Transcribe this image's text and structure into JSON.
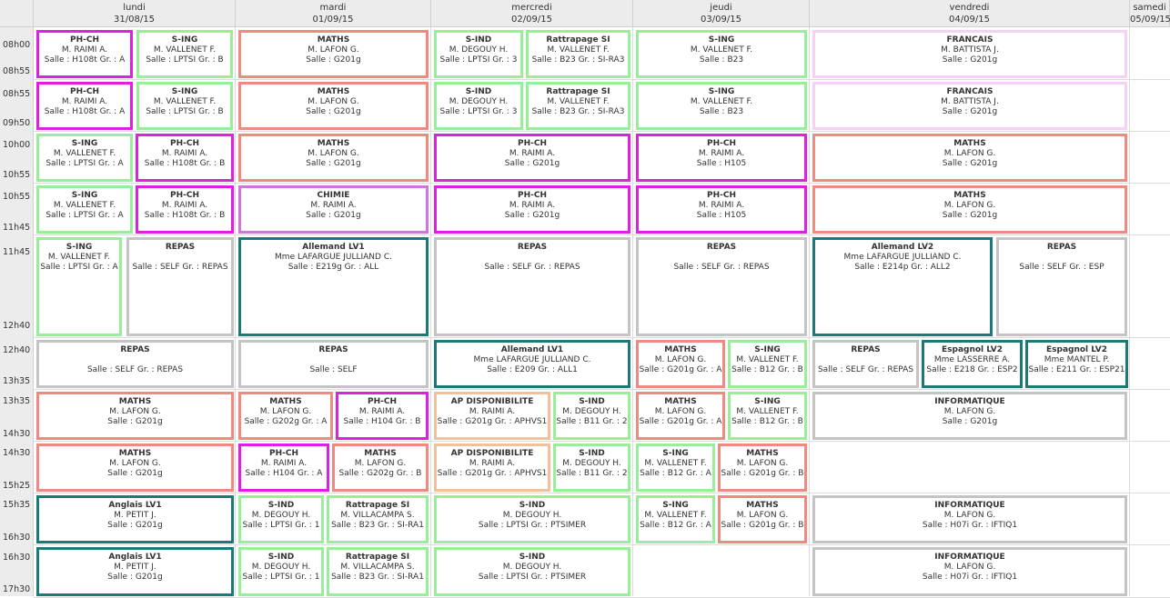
{
  "days": [
    {
      "name": "lundi",
      "date": "31/08/15"
    },
    {
      "name": "mardi",
      "date": "01/09/15"
    },
    {
      "name": "mercredi",
      "date": "02/09/15"
    },
    {
      "name": "jeudi",
      "date": "03/09/15"
    },
    {
      "name": "vendredi",
      "date": "04/09/15"
    },
    {
      "name": "samedi",
      "date": "05/09/15"
    }
  ],
  "time_labels": [
    "08h00",
    "08h55",
    "08h55",
    "09h50",
    "10h00",
    "10h55",
    "10h55",
    "11h45",
    "11h45",
    "12h40",
    "12h40",
    "13h35",
    "13h35",
    "14h30",
    "14h30",
    "15h25",
    "15h35",
    "16h30",
    "16h30",
    "17h30"
  ],
  "colors": {
    "magenta": "#e020e0",
    "green": "#99ee99",
    "salmon": "#ef8a80",
    "teal": "#1a7a75",
    "gray": "#c4c4c4",
    "pink": "#f5d2f5",
    "violet": "#cc77dd",
    "peach": "#f2c09a"
  },
  "cells": [
    {
      "subject": "PH-CH",
      "teacher": "M. RAIMI A.",
      "room": "Salle : H108t Gr. : A",
      "color": "magenta"
    },
    {
      "subject": "S-ING",
      "teacher": "M. VALLENET F.",
      "room": "Salle : LPTSI Gr. : B",
      "color": "green"
    },
    {
      "subject": "MATHS",
      "teacher": "M. LAFON G.",
      "room": "Salle : G201g",
      "color": "salmon"
    },
    {
      "subject": "S-IND",
      "teacher": "M. DEGOUY H.",
      "room": "Salle : LPTSI Gr. : 3",
      "color": "green"
    },
    {
      "subject": "Rattrapage SI",
      "teacher": "M. VALLENET F.",
      "room": "Salle : B23 Gr. : SI-RA3",
      "color": "green"
    },
    {
      "subject": "S-ING",
      "teacher": "M. VALLENET F.",
      "room": "Salle : B23",
      "color": "green"
    },
    {
      "subject": "FRANCAIS",
      "teacher": "M. BATTISTA J.",
      "room": "Salle : G201g",
      "color": "pink"
    },
    {
      "subject": "PH-CH",
      "teacher": "M. RAIMI A.",
      "room": "Salle : H108t Gr. : A",
      "color": "magenta"
    },
    {
      "subject": "S-ING",
      "teacher": "M. VALLENET F.",
      "room": "Salle : LPTSI Gr. : B",
      "color": "green"
    },
    {
      "subject": "MATHS",
      "teacher": "M. LAFON G.",
      "room": "Salle : G201g",
      "color": "salmon"
    },
    {
      "subject": "S-IND",
      "teacher": "M. DEGOUY H.",
      "room": "Salle : LPTSI Gr. : 3",
      "color": "green"
    },
    {
      "subject": "Rattrapage SI",
      "teacher": "M. VALLENET F.",
      "room": "Salle : B23 Gr. : SI-RA3",
      "color": "green"
    },
    {
      "subject": "S-ING",
      "teacher": "M. VALLENET F.",
      "room": "Salle : B23",
      "color": "green"
    },
    {
      "subject": "FRANCAIS",
      "teacher": "M. BATTISTA J.",
      "room": "Salle : G201g",
      "color": "pink"
    },
    {
      "subject": "S-ING",
      "teacher": "M. VALLENET F.",
      "room": "Salle : LPTSI Gr. : A",
      "color": "green"
    },
    {
      "subject": "PH-CH",
      "teacher": "M. RAIMI A.",
      "room": "Salle : H108t Gr. : B",
      "color": "magenta"
    },
    {
      "subject": "MATHS",
      "teacher": "M. LAFON G.",
      "room": "Salle : G201g",
      "color": "salmon"
    },
    {
      "subject": "PH-CH",
      "teacher": "M. RAIMI A.",
      "room": "Salle : G201g",
      "color": "magenta"
    },
    {
      "subject": "PH-CH",
      "teacher": "M. RAIMI A.",
      "room": "Salle : H105",
      "color": "magenta"
    },
    {
      "subject": "MATHS",
      "teacher": "M. LAFON G.",
      "room": "Salle : G201g",
      "color": "salmon"
    },
    {
      "subject": "S-ING",
      "teacher": "M. VALLENET F.",
      "room": "Salle : LPTSI Gr. : A",
      "color": "green"
    },
    {
      "subject": "PH-CH",
      "teacher": "M. RAIMI A.",
      "room": "Salle : H108t Gr. : B",
      "color": "magenta"
    },
    {
      "subject": "CHIMIE",
      "teacher": "M. RAIMI A.",
      "room": "Salle : G201g",
      "color": "violet"
    },
    {
      "subject": "PH-CH",
      "teacher": "M. RAIMI A.",
      "room": "Salle : G201g",
      "color": "magenta"
    },
    {
      "subject": "PH-CH",
      "teacher": "M. RAIMI A.",
      "room": "Salle : H105",
      "color": "magenta"
    },
    {
      "subject": "MATHS",
      "teacher": "M. LAFON G.",
      "room": "Salle : G201g",
      "color": "salmon"
    },
    {
      "subject": "S-ING",
      "teacher": "M. VALLENET F.",
      "room": "Salle : LPTSI Gr. : A",
      "color": "green"
    },
    {
      "subject": "REPAS",
      "teacher": "",
      "room": "Salle : SELF Gr. : REPAS",
      "color": "gray"
    },
    {
      "subject": "Allemand LV1",
      "teacher": "Mme LAFARGUE JULLIAND C.",
      "room": "Salle : E219g Gr. : ALL",
      "color": "teal"
    },
    {
      "subject": "REPAS",
      "teacher": "",
      "room": "Salle : SELF Gr. : REPAS",
      "color": "gray"
    },
    {
      "subject": "REPAS",
      "teacher": "",
      "room": "Salle : SELF Gr. : REPAS",
      "color": "gray"
    },
    {
      "subject": "Allemand LV2",
      "teacher": "Mme LAFARGUE JULLIAND C.",
      "room": "Salle : E214p Gr. : ALL2",
      "color": "teal"
    },
    {
      "subject": "REPAS",
      "teacher": "",
      "room": "Salle : SELF Gr. : ESP",
      "color": "gray"
    },
    {
      "subject": "REPAS",
      "teacher": "",
      "room": "Salle : SELF Gr. : REPAS",
      "color": "gray"
    },
    {
      "subject": "REPAS",
      "teacher": "",
      "room": "Salle : SELF",
      "color": "gray"
    },
    {
      "subject": "Allemand LV1",
      "teacher": "Mme LAFARGUE JULLIAND C.",
      "room": "Salle : E209 Gr. : ALL1",
      "color": "teal"
    },
    {
      "subject": "MATHS",
      "teacher": "M. LAFON G.",
      "room": "Salle : G201g Gr. : A",
      "color": "salmon"
    },
    {
      "subject": "S-ING",
      "teacher": "M. VALLENET F.",
      "room": "Salle : B12 Gr. : B",
      "color": "green"
    },
    {
      "subject": "REPAS",
      "teacher": "",
      "room": "Salle : SELF Gr. : REPAS",
      "color": "gray"
    },
    {
      "subject": "Espagnol LV2",
      "teacher": "Mme LASSERRE A.",
      "room": "Salle : E218 Gr. : ESP2",
      "color": "teal"
    },
    {
      "subject": "Espagnol LV2",
      "teacher": "Mme MANTEL P.",
      "room": "Salle : E211 Gr. : ESP21",
      "color": "teal"
    },
    {
      "subject": "MATHS",
      "teacher": "M. LAFON G.",
      "room": "Salle : G201g",
      "color": "salmon"
    },
    {
      "subject": "MATHS",
      "teacher": "M. LAFON G.",
      "room": "Salle : G202g Gr. : A",
      "color": "salmon"
    },
    {
      "subject": "PH-CH",
      "teacher": "M. RAIMI A.",
      "room": "Salle : H104 Gr. : B",
      "color": "magenta"
    },
    {
      "subject": "AP DISPONIBILITE",
      "teacher": "M. RAIMI A.",
      "room": "Salle : G201g Gr. : APHVS1",
      "color": "peach"
    },
    {
      "subject": "S-IND",
      "teacher": "M. DEGOUY H.",
      "room": "Salle : B11 Gr. : 2",
      "color": "green"
    },
    {
      "subject": "MATHS",
      "teacher": "M. LAFON G.",
      "room": "Salle : G201g Gr. : A",
      "color": "salmon"
    },
    {
      "subject": "S-ING",
      "teacher": "M. VALLENET F.",
      "room": "Salle : B12 Gr. : B",
      "color": "green"
    },
    {
      "subject": "INFORMATIQUE",
      "teacher": "M. LAFON G.",
      "room": "Salle : G201g",
      "color": "gray"
    },
    {
      "subject": "MATHS",
      "teacher": "M. LAFON G.",
      "room": "Salle : G201g",
      "color": "salmon"
    },
    {
      "subject": "PH-CH",
      "teacher": "M. RAIMI A.",
      "room": "Salle : H104 Gr. : A",
      "color": "magenta"
    },
    {
      "subject": "MATHS",
      "teacher": "M. LAFON G.",
      "room": "Salle : G202g Gr. : B",
      "color": "salmon"
    },
    {
      "subject": "AP DISPONIBILITE",
      "teacher": "M. RAIMI A.",
      "room": "Salle : G201g Gr. : APHVS1",
      "color": "peach"
    },
    {
      "subject": "S-IND",
      "teacher": "M. DEGOUY H.",
      "room": "Salle : B11 Gr. : 2",
      "color": "green"
    },
    {
      "subject": "S-ING",
      "teacher": "M. VALLENET F.",
      "room": "Salle : B12 Gr. : A",
      "color": "green"
    },
    {
      "subject": "MATHS",
      "teacher": "M. LAFON G.",
      "room": "Salle : G201g Gr. : B",
      "color": "salmon"
    },
    {
      "subject": "Anglais LV1",
      "teacher": "M. PETIT J.",
      "room": "Salle : G201g",
      "color": "teal"
    },
    {
      "subject": "S-IND",
      "teacher": "M. DEGOUY H.",
      "room": "Salle : LPTSI Gr. : 1",
      "color": "green"
    },
    {
      "subject": "Rattrapage SI",
      "teacher": "M. VILLACAMPA S.",
      "room": "Salle : B23 Gr. : SI-RA1",
      "color": "green"
    },
    {
      "subject": "S-IND",
      "teacher": "M. DEGOUY H.",
      "room": "Salle : LPTSI Gr. : PTSIMER",
      "color": "green"
    },
    {
      "subject": "S-ING",
      "teacher": "M. VALLENET F.",
      "room": "Salle : B12 Gr. : A",
      "color": "green"
    },
    {
      "subject": "MATHS",
      "teacher": "M. LAFON G.",
      "room": "Salle : G201g Gr. : B",
      "color": "salmon"
    },
    {
      "subject": "INFORMATIQUE",
      "teacher": "M. LAFON G.",
      "room": "Salle : H07i Gr. : IFTIQ1",
      "color": "gray"
    },
    {
      "subject": "Anglais LV1",
      "teacher": "M. PETIT J.",
      "room": "Salle : G201g",
      "color": "teal"
    },
    {
      "subject": "S-IND",
      "teacher": "M. DEGOUY H.",
      "room": "Salle : LPTSI Gr. : 1",
      "color": "green"
    },
    {
      "subject": "Rattrapage SI",
      "teacher": "M. VILLACAMPA S.",
      "room": "Salle : B23 Gr. : SI-RA1",
      "color": "green"
    },
    {
      "subject": "S-IND",
      "teacher": "M. DEGOUY H.",
      "room": "Salle : LPTSI Gr. : PTSIMER",
      "color": "green"
    },
    {
      "subject": "INFORMATIQUE",
      "teacher": "M. LAFON G.",
      "room": "Salle : H07i Gr. : IFTIQ1",
      "color": "gray"
    }
  ]
}
